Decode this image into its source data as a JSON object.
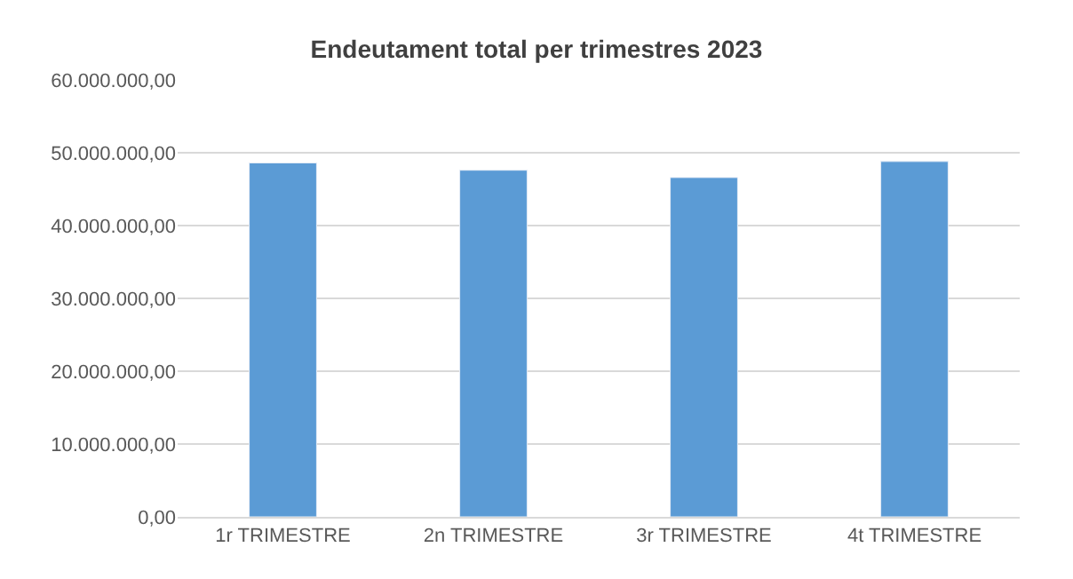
{
  "chart_data": {
    "type": "bar",
    "title": "Endeutament total per trimestres 2023",
    "categories": [
      "1r TRIMESTRE",
      "2n TRIMESTRE",
      "3r TRIMESTRE",
      "4t TRIMESTRE"
    ],
    "values": [
      48600000,
      47600000,
      46600000,
      48800000
    ],
    "color": "#5b9bd5",
    "ylim": [
      0,
      60000000
    ],
    "yticks": [
      {
        "value": 0,
        "label": "0,00"
      },
      {
        "value": 10000000,
        "label": "10.000.000,00"
      },
      {
        "value": 20000000,
        "label": "20.000.000,00"
      },
      {
        "value": 30000000,
        "label": "30.000.000,00"
      },
      {
        "value": 40000000,
        "label": "40.000.000,00"
      },
      {
        "value": 50000000,
        "label": "50.000.000,00"
      },
      {
        "value": 60000000,
        "label": "60.000.000,00"
      }
    ],
    "grid": "y",
    "legend": false
  }
}
